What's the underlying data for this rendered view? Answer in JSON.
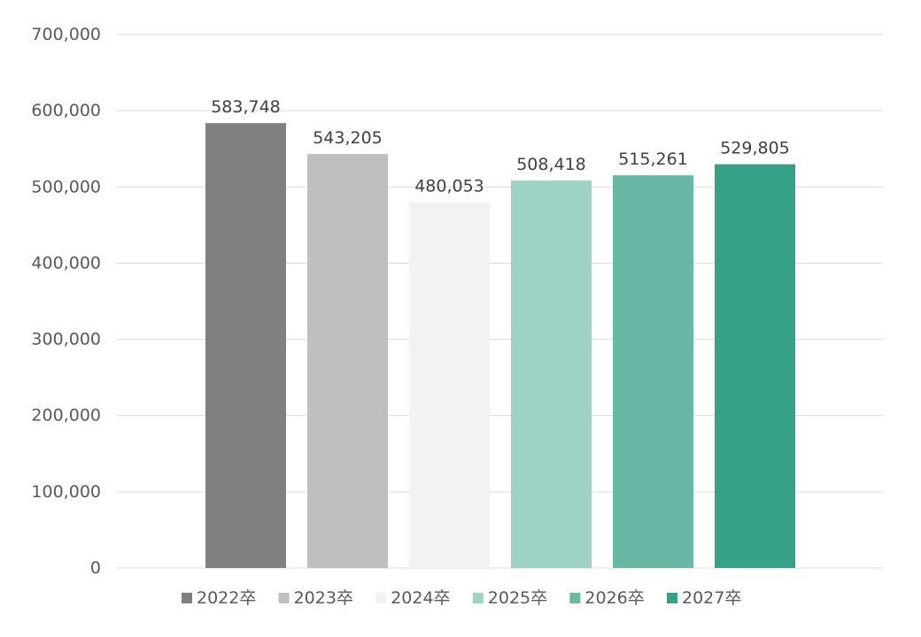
{
  "chart_data": {
    "type": "bar",
    "categories": [
      "2022卒",
      "2023卒",
      "2024卒",
      "2025卒",
      "2026卒",
      "2027卒"
    ],
    "series": [
      {
        "values": [
          583748,
          543205,
          480053,
          508418,
          515261,
          529805
        ]
      }
    ],
    "data_labels": [
      "583,748",
      "543,205",
      "480,053",
      "508,418",
      "515,261",
      "529,805"
    ],
    "colors": [
      "#808080",
      "#bfbfbf",
      "#f2f2f2",
      "#9dd2c4",
      "#67b8a4",
      "#35a186"
    ],
    "title": "",
    "xlabel": "",
    "ylabel": "",
    "ylim": [
      0,
      700000
    ],
    "yticks": [
      0,
      100000,
      200000,
      300000,
      400000,
      500000,
      600000,
      700000
    ],
    "ytick_labels": [
      "0",
      "100,000",
      "200,000",
      "300,000",
      "400,000",
      "500,000",
      "600,000",
      "700,000"
    ],
    "grid": true,
    "legend_position": "bottom"
  }
}
